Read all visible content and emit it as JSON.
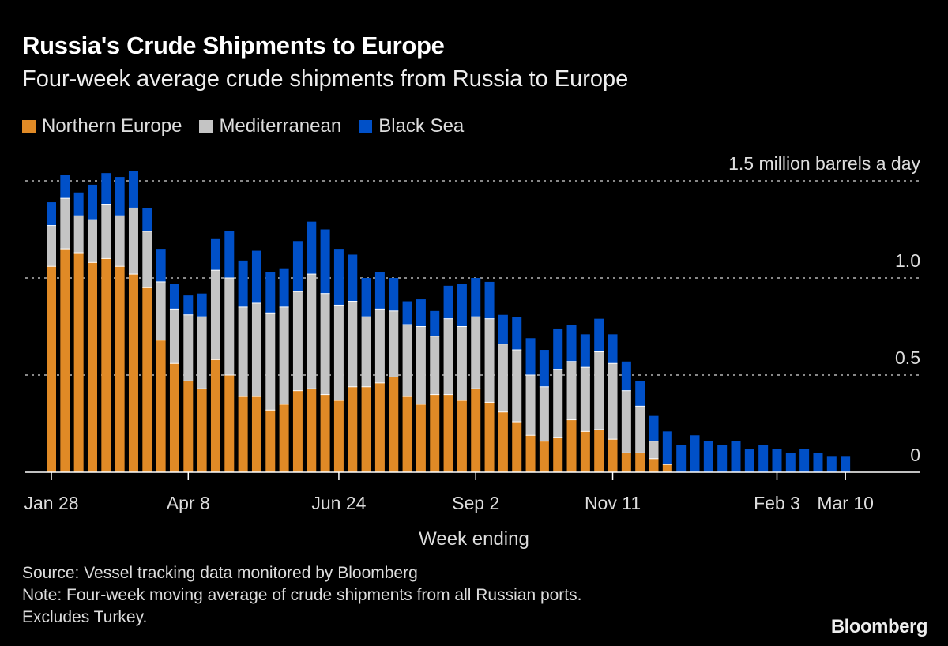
{
  "header": {
    "title": "Russia's Crude Shipments to Europe",
    "subtitle": "Four-week average crude shipments from Russia to Europe"
  },
  "logo": "Bloomberg",
  "footer": {
    "source": "Source: Vessel tracking data monitored by Bloomberg",
    "note": "Note: Four-week moving average of crude shipments from all Russian ports.",
    "note2": "Excludes Turkey."
  },
  "chart_data": {
    "type": "bar",
    "stacked": true,
    "title": "Russia's Crude Shipments to Europe",
    "subtitle": "Four-week average crude shipments from Russia to Europe",
    "xlabel": "Week ending",
    "ylabel": "",
    "ylim": [
      0,
      1.5
    ],
    "grid": true,
    "legend_position": "top-left",
    "y_ticks": [
      {
        "value": 0,
        "label": "0"
      },
      {
        "value": 0.5,
        "label": "0.5"
      },
      {
        "value": 1.0,
        "label": "1.0"
      },
      {
        "value": 1.5,
        "label": "1.5 million barrels a day"
      }
    ],
    "x_ticks": [
      {
        "index": 0,
        "label": "Jan 28"
      },
      {
        "index": 10,
        "label": "Apr 8"
      },
      {
        "index": 21,
        "label": "Jun 24"
      },
      {
        "index": 31,
        "label": "Sep 2"
      },
      {
        "index": 41,
        "label": "Nov 11"
      },
      {
        "index": 53,
        "label": "Feb 3"
      },
      {
        "index": 58,
        "label": "Mar 10"
      }
    ],
    "categories": [
      "2022-01-28",
      "2022-02-04",
      "2022-02-11",
      "2022-02-18",
      "2022-02-25",
      "2022-03-04",
      "2022-03-11",
      "2022-03-18",
      "2022-03-25",
      "2022-04-01",
      "2022-04-08",
      "2022-04-15",
      "2022-04-22",
      "2022-04-29",
      "2022-05-06",
      "2022-05-13",
      "2022-05-20",
      "2022-05-27",
      "2022-06-03",
      "2022-06-10",
      "2022-06-17",
      "2022-06-24",
      "2022-07-01",
      "2022-07-08",
      "2022-07-15",
      "2022-07-22",
      "2022-07-29",
      "2022-08-05",
      "2022-08-12",
      "2022-08-19",
      "2022-08-26",
      "2022-09-02",
      "2022-09-09",
      "2022-09-16",
      "2022-09-23",
      "2022-09-30",
      "2022-10-07",
      "2022-10-14",
      "2022-10-21",
      "2022-10-28",
      "2022-11-04",
      "2022-11-11",
      "2022-11-18",
      "2022-11-25",
      "2022-12-02",
      "2022-12-09",
      "2022-12-16",
      "2022-12-23",
      "2022-12-30",
      "2023-01-06",
      "2023-01-13",
      "2023-01-20",
      "2023-01-27",
      "2023-02-03",
      "2023-02-10",
      "2023-02-17",
      "2023-02-24",
      "2023-03-03",
      "2023-03-10"
    ],
    "series": [
      {
        "name": "Northern Europe",
        "color": "#e08a26",
        "values": [
          1.06,
          1.15,
          1.13,
          1.08,
          1.1,
          1.06,
          1.02,
          0.95,
          0.68,
          0.56,
          0.47,
          0.43,
          0.58,
          0.5,
          0.39,
          0.39,
          0.32,
          0.35,
          0.42,
          0.43,
          0.4,
          0.37,
          0.44,
          0.44,
          0.46,
          0.49,
          0.39,
          0.35,
          0.4,
          0.4,
          0.37,
          0.43,
          0.36,
          0.31,
          0.26,
          0.19,
          0.16,
          0.18,
          0.27,
          0.21,
          0.22,
          0.17,
          0.1,
          0.1,
          0.07,
          0.04,
          0,
          0,
          0,
          0,
          0,
          0,
          0,
          0,
          0,
          0,
          0,
          0,
          0
        ]
      },
      {
        "name": "Mediterranean",
        "color": "#c4c4c4",
        "values": [
          0.21,
          0.26,
          0.19,
          0.22,
          0.28,
          0.26,
          0.34,
          0.29,
          0.3,
          0.28,
          0.34,
          0.37,
          0.46,
          0.5,
          0.46,
          0.48,
          0.5,
          0.5,
          0.51,
          0.59,
          0.52,
          0.49,
          0.44,
          0.36,
          0.38,
          0.34,
          0.37,
          0.4,
          0.3,
          0.39,
          0.38,
          0.37,
          0.43,
          0.35,
          0.37,
          0.31,
          0.28,
          0.35,
          0.3,
          0.33,
          0.4,
          0.39,
          0.32,
          0.24,
          0.09,
          0,
          0,
          0,
          0,
          0,
          0,
          0,
          0,
          0,
          0,
          0,
          0,
          0,
          0
        ]
      },
      {
        "name": "Black Sea",
        "color": "#0050c8",
        "values": [
          0.12,
          0.12,
          0.12,
          0.18,
          0.16,
          0.2,
          0.19,
          0.12,
          0.17,
          0.13,
          0.1,
          0.12,
          0.16,
          0.24,
          0.24,
          0.27,
          0.21,
          0.2,
          0.26,
          0.27,
          0.33,
          0.29,
          0.24,
          0.2,
          0.19,
          0.17,
          0.12,
          0.14,
          0.13,
          0.17,
          0.22,
          0.2,
          0.19,
          0.15,
          0.17,
          0.19,
          0.19,
          0.21,
          0.19,
          0.17,
          0.17,
          0.15,
          0.15,
          0.13,
          0.13,
          0.17,
          0.14,
          0.19,
          0.16,
          0.14,
          0.16,
          0.12,
          0.14,
          0.12,
          0.1,
          0.12,
          0.1,
          0.08,
          0.08
        ]
      }
    ]
  }
}
